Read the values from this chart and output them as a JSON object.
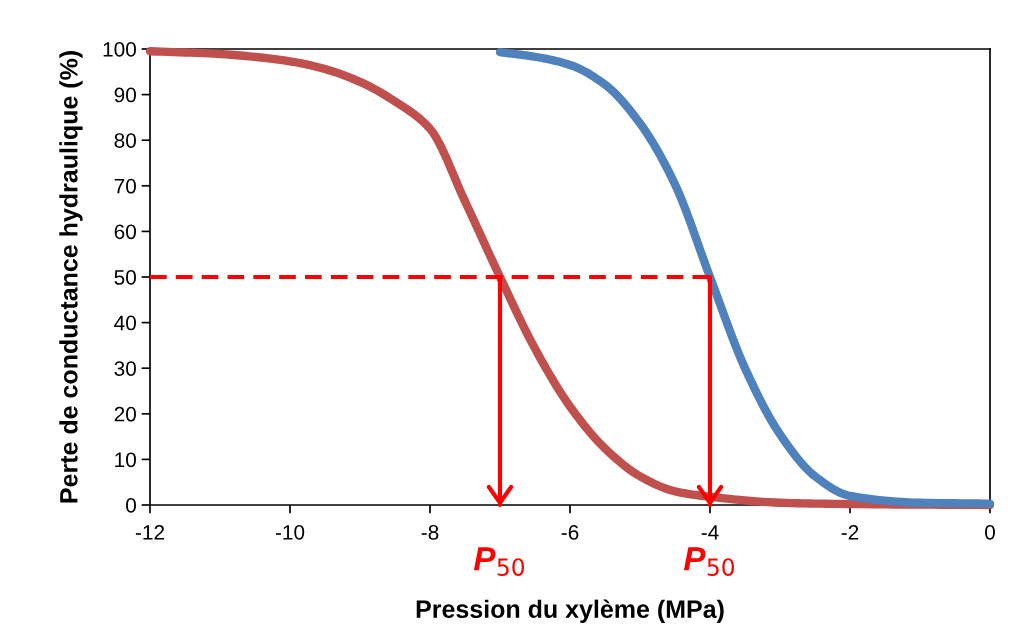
{
  "chart_data": {
    "type": "line",
    "xlabel": "Pression du xylème (MPa)",
    "ylabel": "Perte de conductance hydraulique (%)",
    "xlim": [
      -12,
      0
    ],
    "xticks": [
      -12,
      -10,
      -8,
      -6,
      -4,
      -2,
      0
    ],
    "ylim": [
      0,
      100
    ],
    "yticks": [
      0,
      10,
      20,
      30,
      40,
      50,
      60,
      70,
      80,
      90,
      100
    ],
    "grid": false,
    "legend": false,
    "series": [
      {
        "color": "#c0504d",
        "x": [
          -12,
          -11,
          -10,
          -9.5,
          -9,
          -8.5,
          -8,
          -7.5,
          -7,
          -6.5,
          -6,
          -5.5,
          -5,
          -4.5,
          -4,
          -3,
          -2,
          0
        ],
        "values": [
          99.5,
          98.9,
          97.3,
          95.6,
          92.8,
          88.5,
          82.5,
          66.6,
          50,
          34.3,
          21.6,
          12.4,
          6.3,
          3.0,
          1.8,
          0.5,
          0.2,
          0
        ]
      },
      {
        "color": "#4f81bd",
        "x": [
          -7,
          -6.5,
          -6,
          -5.5,
          -5,
          -4.5,
          -4,
          -3.5,
          -3,
          -2.5,
          -2,
          -1,
          0
        ],
        "values": [
          99.3,
          98.3,
          96.5,
          92.2,
          83.7,
          70.3,
          50,
          30,
          15.5,
          6.3,
          2,
          0.5,
          0.3
        ]
      },
      {
        "color": "#ff0000",
        "line_style": "dashed",
        "x": [
          -12,
          -4
        ],
        "values": [
          50,
          50
        ]
      },
      {
        "color": "#ff0000",
        "x": [
          -7,
          -7
        ],
        "values": [
          50,
          0
        ]
      },
      {
        "color": "#ff0000",
        "x": [
          -4,
          -4
        ],
        "values": [
          50,
          0
        ]
      }
    ],
    "annotations": [
      "P$_{50}$",
      "P$_{50}$"
    ]
  }
}
